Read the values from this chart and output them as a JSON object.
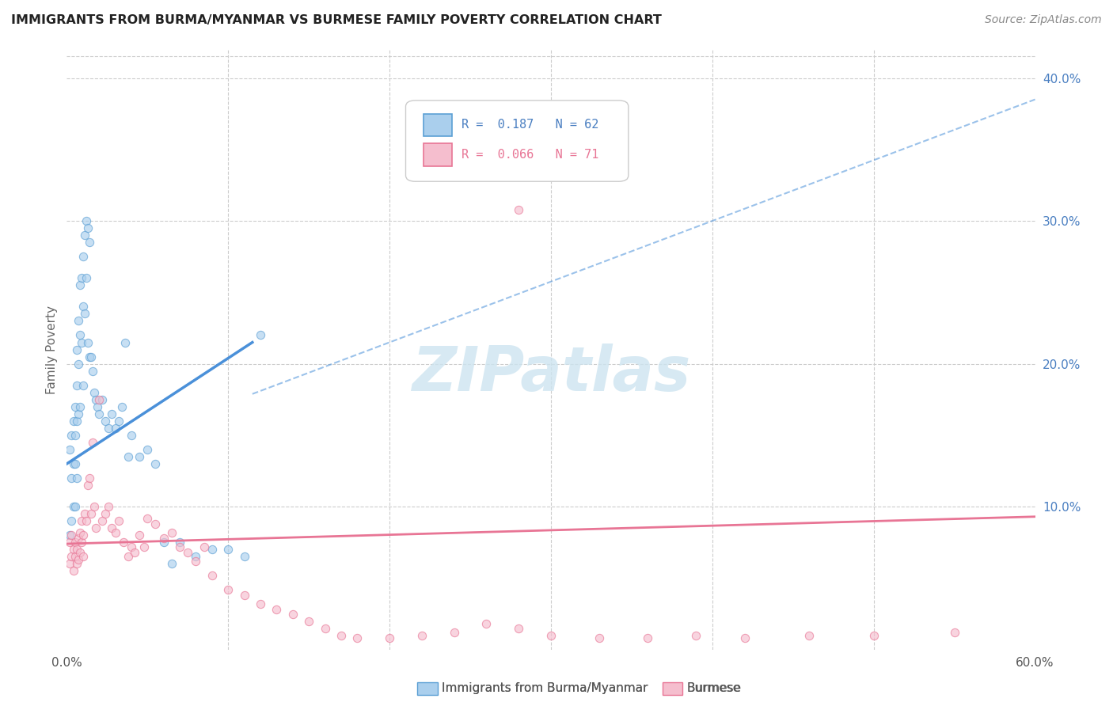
{
  "title": "IMMIGRANTS FROM BURMA/MYANMAR VS BURMESE FAMILY POVERTY CORRELATION CHART",
  "source": "Source: ZipAtlas.com",
  "ylabel": "Family Poverty",
  "xlim": [
    0.0,
    0.6
  ],
  "ylim": [
    0.0,
    0.42
  ],
  "r1": 0.187,
  "n1": 62,
  "r2": 0.066,
  "n2": 71,
  "color_blue_fill": "#aacfed",
  "color_blue_edge": "#5b9fd4",
  "color_blue_line": "#4a90d9",
  "color_pink_fill": "#f5bece",
  "color_pink_edge": "#e87595",
  "color_pink_line": "#e87595",
  "color_blue_text": "#4a7fc1",
  "color_pink_text": "#e87595",
  "scatter_alpha": 0.65,
  "scatter_size": 55,
  "background_color": "#ffffff",
  "blue_line_start_x": 0.0,
  "blue_line_start_y": 0.13,
  "blue_line_solid_end_x": 0.115,
  "blue_line_solid_end_y": 0.215,
  "blue_line_dash_end_x": 0.6,
  "blue_line_dash_end_y": 0.385,
  "pink_line_start_x": 0.0,
  "pink_line_start_y": 0.074,
  "pink_line_end_x": 0.6,
  "pink_line_end_y": 0.093
}
